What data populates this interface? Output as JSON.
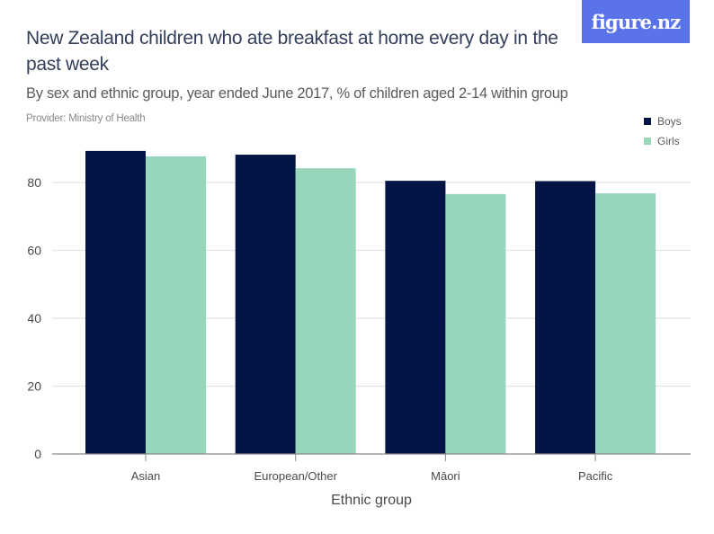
{
  "logo": {
    "text": "figure.nz",
    "color": "#5b73e8"
  },
  "header": {
    "title": "New Zealand children who ate breakfast at home every day in the past week",
    "subtitle": "By sex and ethnic group, year ended June 2017, % of children aged 2-14 within group",
    "provider": "Provider: Ministry of Health"
  },
  "chart_data": {
    "type": "bar",
    "title": "New Zealand children who ate breakfast at home every day in the past week",
    "subtitle": "By sex and ethnic group, year ended June 2017, % of children aged 2-14 within group",
    "xlabel": "Ethnic group",
    "ylabel": "",
    "categories": [
      "Asian",
      "European/Other",
      "Māori",
      "Pacific"
    ],
    "series": [
      {
        "name": "Boys",
        "color": "#041445",
        "values": [
          89.3,
          88.2,
          80.5,
          80.4
        ]
      },
      {
        "name": "Girls",
        "color": "#97d6bb",
        "values": [
          87.7,
          84.2,
          76.6,
          76.8
        ]
      }
    ],
    "ylim": [
      0,
      80
    ],
    "yticks": [
      0,
      20,
      40,
      60,
      80
    ],
    "grid": true,
    "legend": "top-right"
  }
}
